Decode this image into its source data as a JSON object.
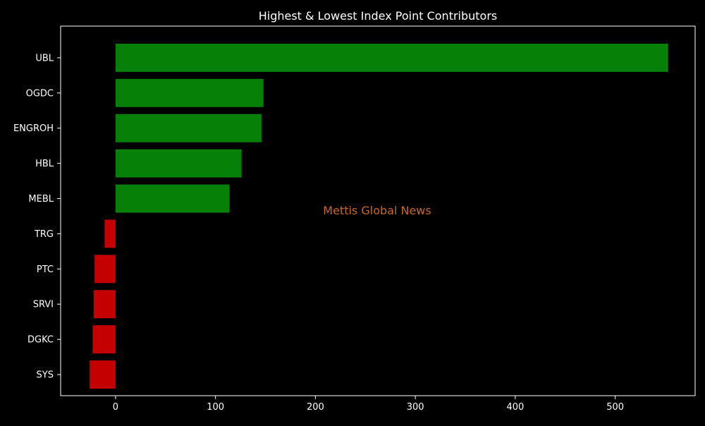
{
  "chart_data": {
    "type": "bar",
    "orientation": "horizontal",
    "title": "Highest & Lowest Index Point Contributors",
    "xlabel": "",
    "ylabel": "",
    "categories": [
      "UBL",
      "OGDC",
      "ENGROH",
      "HBL",
      "MEBL",
      "TRG",
      "PTC",
      "SRVI",
      "DGKC",
      "SYS"
    ],
    "values": [
      553,
      148,
      146,
      126,
      114,
      -11,
      -21,
      -22,
      -23,
      -26
    ],
    "xlim": [
      -55,
      580
    ],
    "xticks": [
      0,
      100,
      200,
      300,
      400,
      500
    ],
    "grid": false,
    "watermark": "Mettis Global News",
    "colors": {
      "positive": "#078007",
      "negative": "#c40000",
      "background": "#000000",
      "text": "#ffffff",
      "watermark": "#c8691c"
    }
  }
}
